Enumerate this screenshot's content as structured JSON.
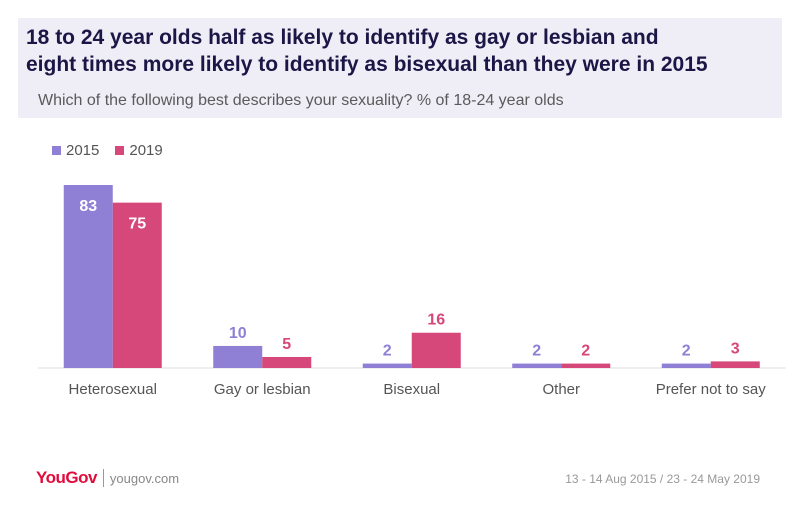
{
  "title_line1": "18 to 24 year olds half as likely to identify as gay or lesbian and",
  "title_line2": "eight times more likely to identify as bisexual than they were in 2015",
  "subtitle": "Which of the following best describes your sexuality? % of 18-24 year olds",
  "footer": {
    "logo": "YouGov",
    "site": "yougov.com",
    "dates": "13 - 14 Aug 2015 / 23 - 24 May 2019"
  },
  "colors": {
    "2015": "#8f7fd5",
    "2019": "#d6477a"
  },
  "chart_data": {
    "type": "bar",
    "categories": [
      "Heterosexual",
      "Gay or lesbian",
      "Bisexual",
      "Other",
      "Prefer not to say"
    ],
    "series": [
      {
        "name": "2015",
        "values": [
          83,
          10,
          2,
          2,
          2
        ]
      },
      {
        "name": "2019",
        "values": [
          75,
          5,
          16,
          2,
          3
        ]
      }
    ],
    "ylim": [
      0,
      100
    ],
    "legend": "top-left",
    "grid": false
  }
}
